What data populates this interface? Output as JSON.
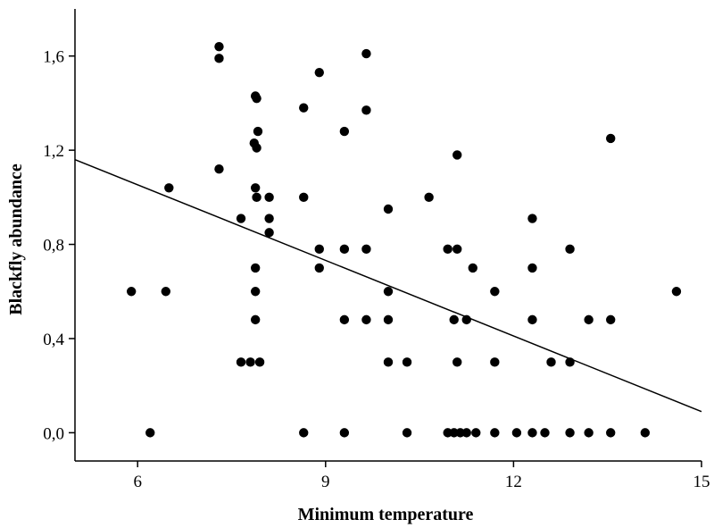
{
  "chart_data": {
    "type": "scatter",
    "title": "",
    "xlabel": "Minimum temperature",
    "ylabel": "Blackfly abundance",
    "xlim": [
      5,
      15
    ],
    "ylim": [
      -0.12,
      1.8
    ],
    "x_ticks": [
      6,
      9,
      12,
      15
    ],
    "x_tick_labels": [
      "6",
      "9",
      "12",
      "15"
    ],
    "y_ticks": [
      0.0,
      0.4,
      0.8,
      1.2,
      1.6
    ],
    "y_tick_labels": [
      "0,0",
      "0,4",
      "0,8",
      "1,2",
      "1,6"
    ],
    "grid": false,
    "legend": "none",
    "points": [
      [
        5.9,
        0.6
      ],
      [
        6.2,
        0.0
      ],
      [
        6.45,
        0.6
      ],
      [
        6.5,
        1.04
      ],
      [
        7.3,
        1.64
      ],
      [
        7.3,
        1.59
      ],
      [
        7.3,
        1.12
      ],
      [
        7.65,
        0.91
      ],
      [
        7.65,
        0.3
      ],
      [
        7.8,
        0.3
      ],
      [
        7.95,
        0.3
      ],
      [
        7.88,
        1.43
      ],
      [
        7.9,
        1.42
      ],
      [
        7.92,
        1.28
      ],
      [
        7.86,
        1.23
      ],
      [
        7.9,
        1.21
      ],
      [
        7.88,
        1.04
      ],
      [
        7.9,
        1.0
      ],
      [
        7.88,
        0.7
      ],
      [
        7.88,
        0.6
      ],
      [
        7.88,
        0.48
      ],
      [
        8.1,
        1.0
      ],
      [
        8.1,
        0.91
      ],
      [
        8.1,
        0.85
      ],
      [
        8.65,
        1.38
      ],
      [
        8.65,
        1.0
      ],
      [
        8.65,
        0.0
      ],
      [
        8.9,
        1.53
      ],
      [
        8.9,
        0.78
      ],
      [
        8.9,
        0.7
      ],
      [
        9.3,
        1.28
      ],
      [
        9.3,
        0.78
      ],
      [
        9.3,
        0.48
      ],
      [
        9.3,
        0.0
      ],
      [
        9.65,
        1.61
      ],
      [
        9.65,
        1.37
      ],
      [
        9.65,
        0.78
      ],
      [
        9.65,
        0.48
      ],
      [
        10.0,
        0.95
      ],
      [
        10.0,
        0.6
      ],
      [
        10.0,
        0.48
      ],
      [
        10.0,
        0.3
      ],
      [
        10.3,
        0.3
      ],
      [
        10.3,
        0.0
      ],
      [
        10.65,
        1.0
      ],
      [
        10.95,
        0.78
      ],
      [
        10.95,
        0.0
      ],
      [
        11.1,
        1.18
      ],
      [
        11.1,
        0.78
      ],
      [
        11.05,
        0.48
      ],
      [
        11.1,
        0.3
      ],
      [
        11.05,
        0.0
      ],
      [
        11.15,
        0.0
      ],
      [
        11.35,
        0.7
      ],
      [
        11.25,
        0.48
      ],
      [
        11.25,
        0.0
      ],
      [
        11.4,
        0.0
      ],
      [
        11.7,
        0.6
      ],
      [
        11.7,
        0.3
      ],
      [
        11.7,
        0.0
      ],
      [
        12.05,
        0.0
      ],
      [
        12.3,
        0.91
      ],
      [
        12.3,
        0.7
      ],
      [
        12.3,
        0.48
      ],
      [
        12.3,
        0.0
      ],
      [
        12.5,
        0.0
      ],
      [
        12.6,
        0.3
      ],
      [
        12.9,
        0.78
      ],
      [
        12.9,
        0.3
      ],
      [
        12.9,
        0.0
      ],
      [
        13.2,
        0.48
      ],
      [
        13.2,
        0.0
      ],
      [
        13.55,
        1.25
      ],
      [
        13.55,
        0.48
      ],
      [
        13.55,
        0.0
      ],
      [
        14.1,
        0.0
      ],
      [
        14.6,
        0.6
      ]
    ],
    "trend_line": {
      "x": [
        5,
        15
      ],
      "y": [
        1.16,
        0.09
      ]
    }
  }
}
